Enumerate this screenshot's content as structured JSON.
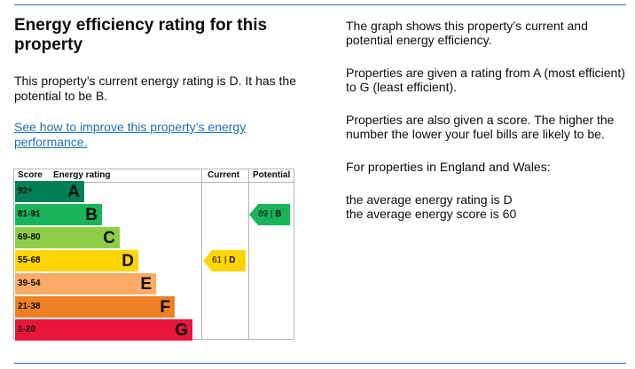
{
  "heading": "Energy efficiency rating for this property",
  "current_text": "This property’s current energy rating is D. It has the potential to be B.",
  "improve_link": "See how to improve this property’s energy performance.",
  "info": {
    "p1": "The graph shows this property’s current and potential energy efficiency.",
    "p2": "Properties are given a rating from A (most efficient) to G (least efficient).",
    "p3": "Properties are also given a score. The higher the number the lower your fuel bills are likely to be.",
    "p4": "For properties in England and Wales:",
    "p5a": "the average energy rating is D",
    "p5b": "the average energy score is 60"
  },
  "chart": {
    "headers": {
      "score": "Score",
      "rating": "Energy rating",
      "current": "Current",
      "potential": "Potential"
    },
    "bands": [
      {
        "score": "92+",
        "letter": "A",
        "color": "#008054"
      },
      {
        "score": "81-91",
        "letter": "B",
        "color": "#19b459"
      },
      {
        "score": "69-80",
        "letter": "C",
        "color": "#8dce46"
      },
      {
        "score": "55-68",
        "letter": "D",
        "color": "#ffd500"
      },
      {
        "score": "39-54",
        "letter": "E",
        "color": "#fcaa65"
      },
      {
        "score": "21-38",
        "letter": "F",
        "color": "#ef8023"
      },
      {
        "score": "1-20",
        "letter": "G",
        "color": "#e9153b"
      }
    ],
    "current": {
      "score": "61",
      "sep": "|",
      "letter": "D",
      "color": "#ffd500"
    },
    "potential": {
      "score": "89",
      "sep": "|",
      "letter": "B",
      "color": "#19b459"
    }
  }
}
